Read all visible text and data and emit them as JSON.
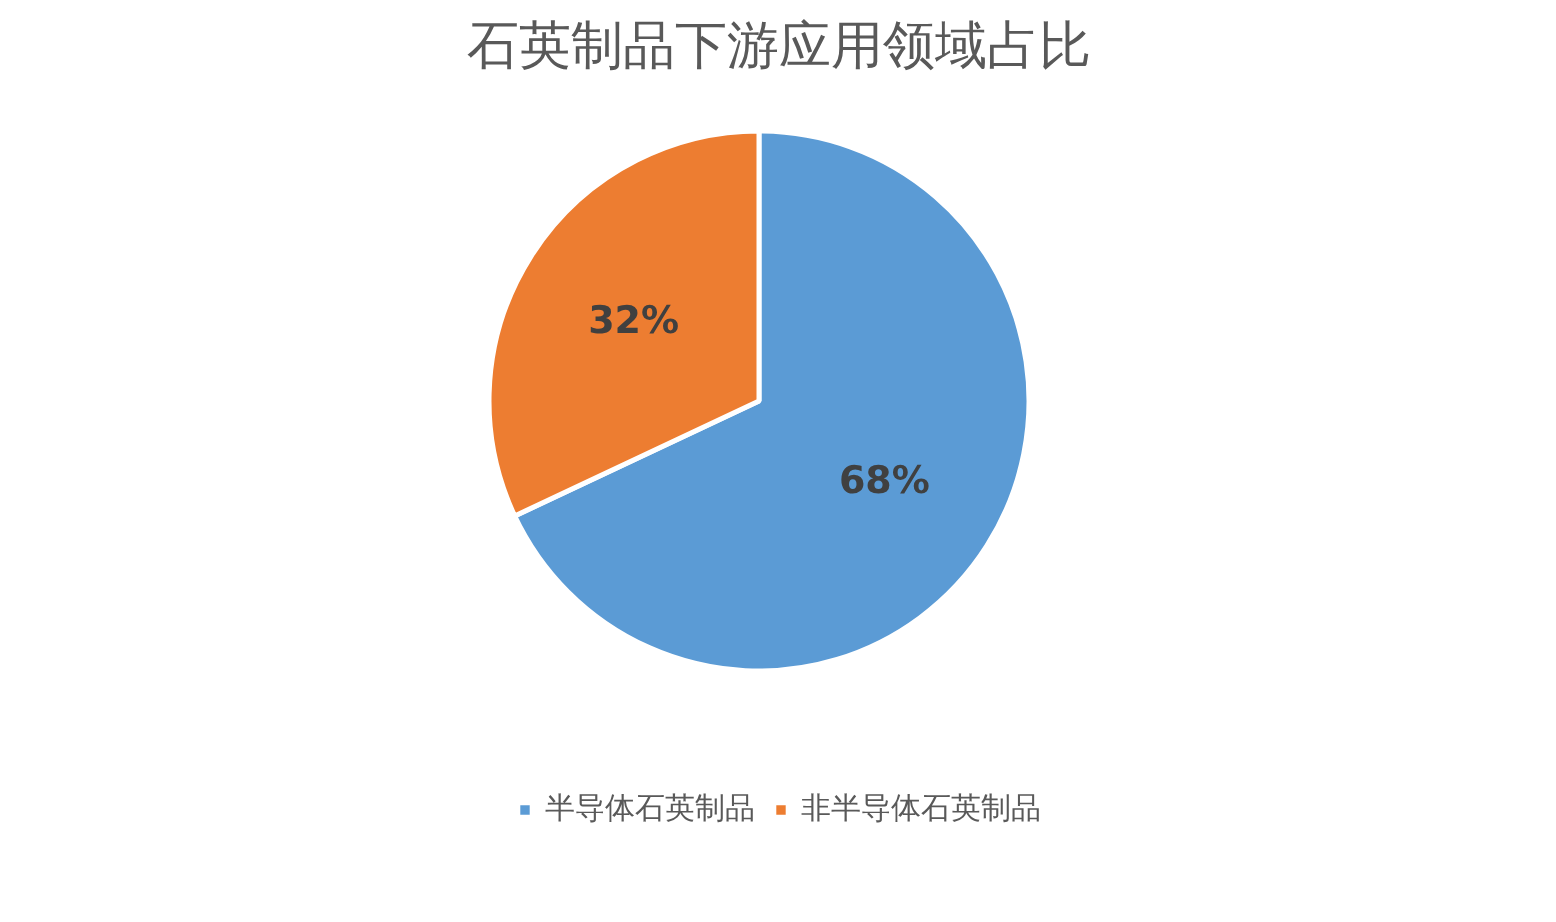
{
  "chart_data": {
    "type": "pie",
    "title": "石英制品下游应用领域占比",
    "categories": [
      "半导体石英制品",
      "非半导体石英制品"
    ],
    "values": [
      68,
      32
    ],
    "colors": [
      "#5b9bd5",
      "#ed7d31"
    ],
    "value_labels": [
      "68%",
      "32%"
    ],
    "legend": "bottom"
  }
}
